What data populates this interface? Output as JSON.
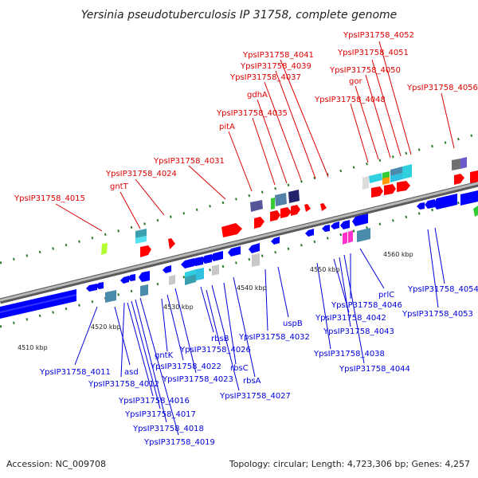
{
  "title": "Yersinia pseudotuberculosis IP 31758, complete genome",
  "footer": {
    "accession": "Accession: NC_009708",
    "topology": "Topology: circular; Length: 4,723,306 bp; Genes: 4,257"
  },
  "colors": {
    "forward_label": "#dd0000",
    "reverse_label": "#0000dd",
    "forward_gene": "#ff0000",
    "reverse_gene": "#0000ff",
    "backbone": "#8c8c8c",
    "tick": "#2a7a2a"
  },
  "scale": [
    {
      "label": "4510 kbp"
    },
    {
      "label": "4520 kbp"
    },
    {
      "label": "4530 kbp"
    },
    {
      "label": "4540 kbp"
    },
    {
      "label": "4550 kbp"
    },
    {
      "label": "4560 kbp"
    }
  ],
  "forward_labels": [
    "YpsIP31758_4015",
    "gntT",
    "YpsIP31758_4024",
    "YpsIP31758_4031",
    "pitA",
    "YpsIP31758_4035",
    "gdhA",
    "YpsIP31758_4037",
    "YpsIP31758_4039",
    "YpsIP31758_4041",
    "YpsIP31758_4048",
    "gor",
    "YpsIP31758_4050",
    "YpsIP31758_4051",
    "YpsIP31758_4052",
    "YpsIP31758_4056"
  ],
  "reverse_labels": [
    "YpsIP31758_4011",
    "asd",
    "YpsIP31758_4012",
    "YpsIP31758_4016",
    "YpsIP31758_4017",
    "YpsIP31758_4018",
    "YpsIP31758_4019",
    "gntK",
    "YpsIP31758_4022",
    "YpsIP31758_4023",
    "rbsB",
    "YpsIP31758_4026",
    "YpsIP31758_4027",
    "rbsC",
    "rbsA",
    "YpsIP31758_4032",
    "uspB",
    "YpsIP31758_4038",
    "YpsIP31758_4042",
    "YpsIP31758_4043",
    "YpsIP31758_4044",
    "YpsIP31758_4046",
    "prlC",
    "YpsIP31758_4053",
    "YpsIP31758_4054"
  ]
}
